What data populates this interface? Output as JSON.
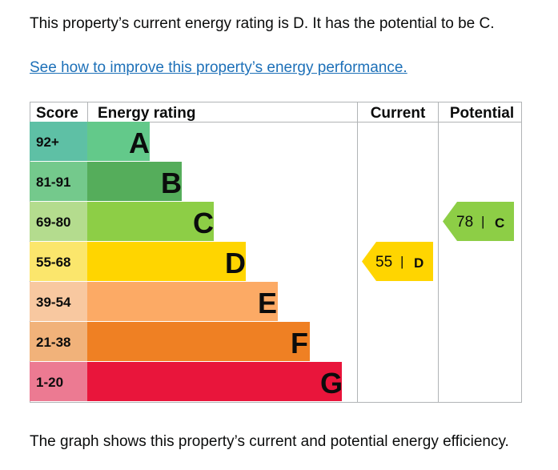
{
  "intro_text": "This property’s current energy rating is D. It has the potential to be C.",
  "improve_link": "See how to improve this property’s energy performance.",
  "footer_text": "The graph shows this property’s current and potential energy efficiency.",
  "colors": {
    "A": "#63c98a",
    "B": "#55ad5b",
    "C": "#8dce46",
    "D": "#ffd500",
    "E": "#fcaa65",
    "F": "#ef8023",
    "G": "#e9153b",
    "score_A": "#5ec0a5",
    "score_B": "#74c98c",
    "score_C": "#b4dc8e",
    "score_D": "#fbe66c",
    "score_E": "#f8c8a0",
    "score_F": "#f1b27a",
    "score_G": "#ec7a92",
    "grid": "#b1b4b6"
  },
  "chart_data": {
    "type": "table",
    "title": "",
    "columns": [
      "Score",
      "Energy rating",
      "Current",
      "Potential"
    ],
    "bands": [
      {
        "score": "92+",
        "rating": "A"
      },
      {
        "score": "81-91",
        "rating": "B"
      },
      {
        "score": "69-80",
        "rating": "C"
      },
      {
        "score": "55-68",
        "rating": "D"
      },
      {
        "score": "39-54",
        "rating": "E"
      },
      {
        "score": "21-38",
        "rating": "F"
      },
      {
        "score": "1-20",
        "rating": "G"
      }
    ],
    "current": {
      "value": 55,
      "rating": "D",
      "divider": "|"
    },
    "potential": {
      "value": 78,
      "rating": "C",
      "divider": "|"
    }
  }
}
